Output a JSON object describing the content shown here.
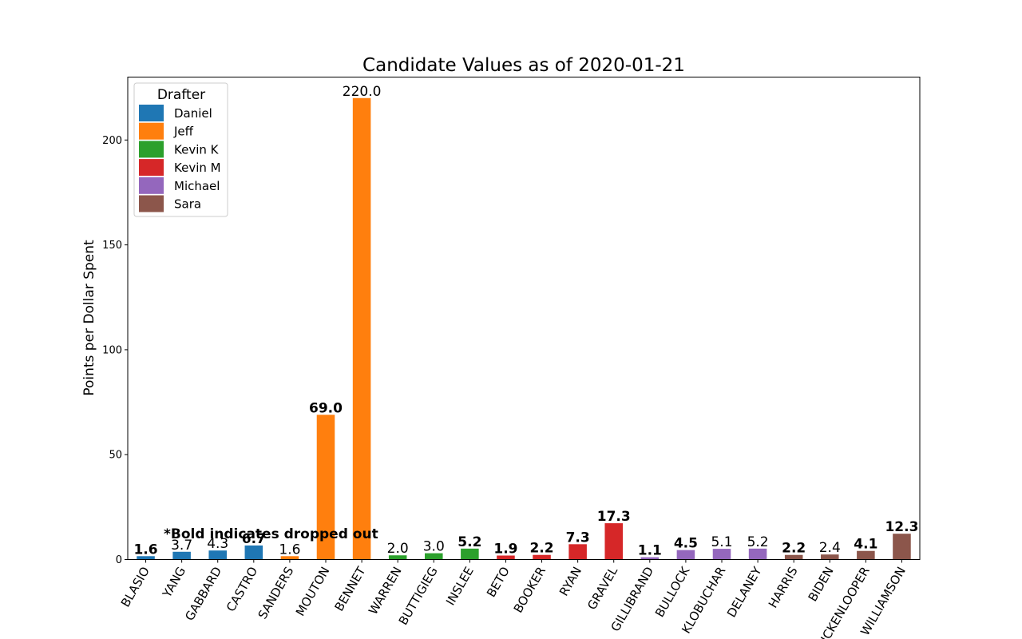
{
  "chart_data": {
    "type": "bar",
    "title": "Candidate Values as of 2020-01-21",
    "xlabel": "",
    "ylabel": "Points per Dollar Spent",
    "ylim": [
      0,
      230
    ],
    "yticks": [
      0,
      50,
      100,
      150,
      200
    ],
    "grid": false,
    "legend": {
      "title": "Drafter",
      "placement": "upper-left",
      "entries": [
        {
          "name": "Daniel",
          "color": "#1f77b4"
        },
        {
          "name": "Jeff",
          "color": "#ff7f0e"
        },
        {
          "name": "Kevin K",
          "color": "#2ca02c"
        },
        {
          "name": "Kevin M",
          "color": "#d62728"
        },
        {
          "name": "Michael",
          "color": "#9467bd"
        },
        {
          "name": "Sara",
          "color": "#8c564b"
        }
      ]
    },
    "annotation": "*Bold indicates dropped out",
    "bars": [
      {
        "category": "BLASIO",
        "value": 1.6,
        "label": "1.6",
        "drafter": "Daniel",
        "dropped": true
      },
      {
        "category": "YANG",
        "value": 3.7,
        "label": "3.7",
        "drafter": "Daniel",
        "dropped": false
      },
      {
        "category": "GABBARD",
        "value": 4.3,
        "label": "4.3",
        "drafter": "Daniel",
        "dropped": false
      },
      {
        "category": "CASTRO",
        "value": 6.7,
        "label": "6.7",
        "drafter": "Daniel",
        "dropped": true
      },
      {
        "category": "SANDERS",
        "value": 1.6,
        "label": "1.6",
        "drafter": "Jeff",
        "dropped": false
      },
      {
        "category": "MOUTON",
        "value": 69.0,
        "label": "69.0",
        "drafter": "Jeff",
        "dropped": true
      },
      {
        "category": "BENNET",
        "value": 220.0,
        "label": "220.0",
        "drafter": "Jeff",
        "dropped": false
      },
      {
        "category": "WARREN",
        "value": 2.0,
        "label": "2.0",
        "drafter": "Kevin K",
        "dropped": false
      },
      {
        "category": "BUTTIGIEG",
        "value": 3.0,
        "label": "3.0",
        "drafter": "Kevin K",
        "dropped": false
      },
      {
        "category": "INSLEE",
        "value": 5.2,
        "label": "5.2",
        "drafter": "Kevin K",
        "dropped": true
      },
      {
        "category": "BETO",
        "value": 1.9,
        "label": "1.9",
        "drafter": "Kevin M",
        "dropped": true
      },
      {
        "category": "BOOKER",
        "value": 2.2,
        "label": "2.2",
        "drafter": "Kevin M",
        "dropped": true
      },
      {
        "category": "RYAN",
        "value": 7.3,
        "label": "7.3",
        "drafter": "Kevin M",
        "dropped": true
      },
      {
        "category": "GRAVEL",
        "value": 17.3,
        "label": "17.3",
        "drafter": "Kevin M",
        "dropped": true
      },
      {
        "category": "GILLIBRAND",
        "value": 1.1,
        "label": "1.1",
        "drafter": "Michael",
        "dropped": true
      },
      {
        "category": "BULLOCK",
        "value": 4.5,
        "label": "4.5",
        "drafter": "Michael",
        "dropped": true
      },
      {
        "category": "KLOBUCHAR",
        "value": 5.1,
        "label": "5.1",
        "drafter": "Michael",
        "dropped": false
      },
      {
        "category": "DELANEY",
        "value": 5.2,
        "label": "5.2",
        "drafter": "Michael",
        "dropped": false
      },
      {
        "category": "HARRIS",
        "value": 2.2,
        "label": "2.2",
        "drafter": "Sara",
        "dropped": true
      },
      {
        "category": "BIDEN",
        "value": 2.4,
        "label": "2.4",
        "drafter": "Sara",
        "dropped": false
      },
      {
        "category": "HICKENLOOPER",
        "value": 4.1,
        "label": "4.1",
        "drafter": "Sara",
        "dropped": true
      },
      {
        "category": "WILLIAMSON",
        "value": 12.3,
        "label": "12.3",
        "drafter": "Sara",
        "dropped": true
      }
    ]
  }
}
